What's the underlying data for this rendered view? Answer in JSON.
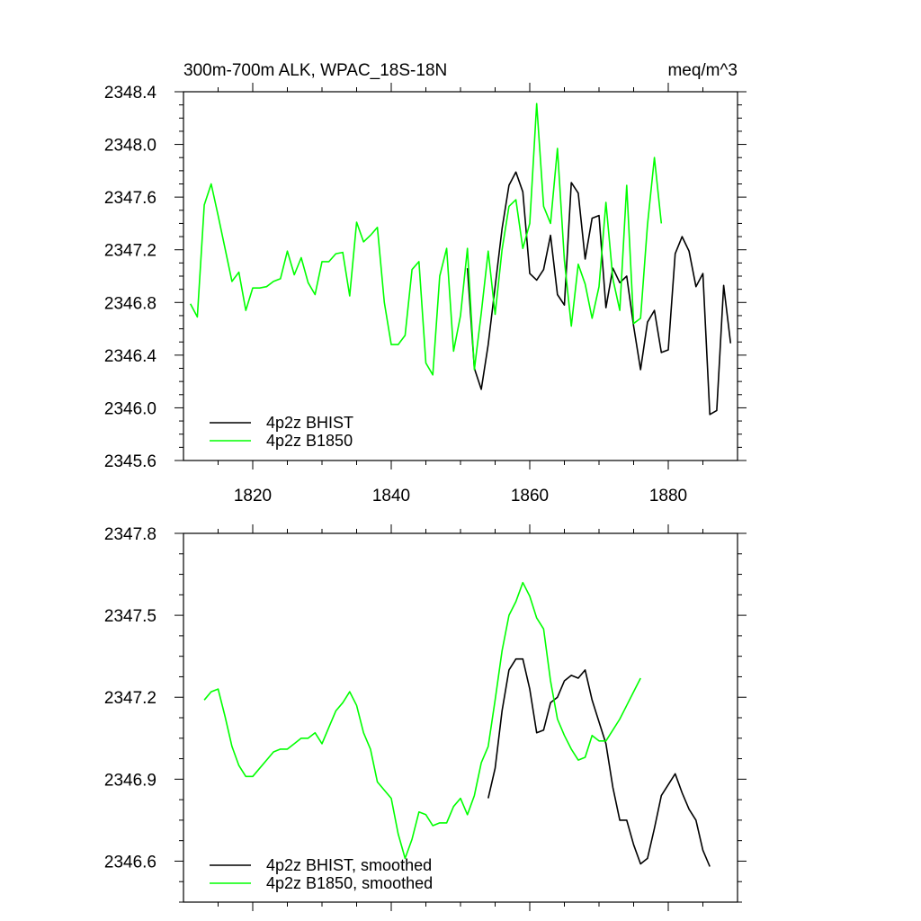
{
  "colors": {
    "bhist": "#000000",
    "b1850": "#00ff00",
    "axes": "#000000",
    "background": "#ffffff"
  },
  "chart_data": [
    {
      "type": "line",
      "title": "300m-700m ALK, WPAC_18S-18N",
      "units": "meq/m^3",
      "xlim": [
        1810,
        1890
      ],
      "ylim": [
        2345.6,
        2348.4
      ],
      "xticks": [
        1820,
        1840,
        1860,
        1880
      ],
      "xtick_labels": [
        "1820",
        "1840",
        "1860",
        "1880"
      ],
      "yticks": [
        2345.6,
        2346.0,
        2346.4,
        2346.8,
        2347.2,
        2347.6,
        2348.0,
        2348.4
      ],
      "ytick_labels": [
        "2345.6",
        "2346.0",
        "2346.4",
        "2346.8",
        "2347.2",
        "2347.6",
        "2348.0",
        "2348.4"
      ],
      "legend_position": "bottom-left",
      "series": [
        {
          "name": "4p2z BHIST",
          "color": "#000000",
          "x": [
            1851,
            1852,
            1853,
            1854,
            1855,
            1856,
            1857,
            1858,
            1859,
            1860,
            1861,
            1862,
            1863,
            1864,
            1865,
            1866,
            1867,
            1868,
            1869,
            1870,
            1871,
            1872,
            1873,
            1874,
            1875,
            1876,
            1877,
            1878,
            1879,
            1880,
            1881,
            1882,
            1883,
            1884,
            1885,
            1886,
            1887,
            1888,
            1889
          ],
          "y": [
            2347.06,
            2346.3,
            2346.14,
            2346.48,
            2346.92,
            2347.36,
            2347.69,
            2347.79,
            2347.64,
            2347.02,
            2346.97,
            2347.05,
            2347.31,
            2346.86,
            2346.78,
            2347.71,
            2347.63,
            2347.13,
            2347.44,
            2347.46,
            2346.76,
            2347.06,
            2346.95,
            2347.0,
            2346.62,
            2346.29,
            2346.65,
            2346.74,
            2346.42,
            2346.44,
            2347.17,
            2347.3,
            2347.19,
            2346.92,
            2347.02,
            2345.95,
            2345.98,
            2346.93,
            2346.49
          ]
        },
        {
          "name": "4p2z B1850",
          "color": "#00ff00",
          "x": [
            1811,
            1812,
            1813,
            1814,
            1815,
            1816,
            1817,
            1818,
            1819,
            1820,
            1821,
            1822,
            1823,
            1824,
            1825,
            1826,
            1827,
            1828,
            1829,
            1830,
            1831,
            1832,
            1833,
            1834,
            1835,
            1836,
            1837,
            1838,
            1839,
            1840,
            1841,
            1842,
            1843,
            1844,
            1845,
            1846,
            1847,
            1848,
            1849,
            1850,
            1851,
            1852,
            1853,
            1854,
            1855,
            1856,
            1857,
            1858,
            1859,
            1860,
            1861,
            1862,
            1863,
            1864,
            1865,
            1866,
            1867,
            1868,
            1869,
            1870,
            1871,
            1872,
            1873,
            1874,
            1875,
            1876,
            1877,
            1878,
            1879
          ],
          "y": [
            2346.79,
            2346.69,
            2347.54,
            2347.7,
            2347.46,
            2347.21,
            2346.96,
            2347.03,
            2346.74,
            2346.91,
            2346.91,
            2346.92,
            2346.96,
            2346.98,
            2347.19,
            2347.01,
            2347.14,
            2346.95,
            2346.86,
            2347.11,
            2347.11,
            2347.17,
            2347.18,
            2346.85,
            2347.41,
            2347.26,
            2347.31,
            2347.37,
            2346.8,
            2346.48,
            2346.48,
            2346.55,
            2347.05,
            2347.11,
            2346.34,
            2346.25,
            2347.0,
            2347.21,
            2346.43,
            2346.7,
            2347.21,
            2346.29,
            2346.72,
            2347.19,
            2346.71,
            2347.2,
            2347.53,
            2347.58,
            2347.21,
            2347.4,
            2348.31,
            2347.53,
            2347.4,
            2347.97,
            2347.12,
            2346.62,
            2347.09,
            2346.94,
            2346.68,
            2346.92,
            2347.56,
            2346.98,
            2346.74,
            2347.69,
            2346.64,
            2346.68,
            2347.39,
            2347.9,
            2347.4
          ]
        }
      ]
    },
    {
      "type": "line",
      "title": "",
      "xlim": [
        1810,
        1890
      ],
      "ylim": [
        2346.45,
        2347.8
      ],
      "xticks": [
        1820,
        1840,
        1860,
        1880
      ],
      "yticks": [
        2346.6,
        2346.9,
        2347.2,
        2347.5,
        2347.8
      ],
      "ytick_labels": [
        "2346.6",
        "2346.9",
        "2347.2",
        "2347.5",
        "2347.8"
      ],
      "legend_position": "bottom-left",
      "series": [
        {
          "name": "4p2z BHIST, smoothed",
          "color": "#000000",
          "x": [
            1854,
            1855,
            1856,
            1857,
            1858,
            1859,
            1860,
            1861,
            1862,
            1863,
            1864,
            1865,
            1866,
            1867,
            1868,
            1869,
            1870,
            1871,
            1872,
            1873,
            1874,
            1875,
            1876,
            1877,
            1878,
            1879,
            1880,
            1881,
            1882,
            1883,
            1884,
            1885,
            1886
          ],
          "y": [
            2346.83,
            2346.94,
            2347.15,
            2347.3,
            2347.34,
            2347.34,
            2347.23,
            2347.07,
            2347.08,
            2347.18,
            2347.2,
            2347.26,
            2347.28,
            2347.27,
            2347.3,
            2347.19,
            2347.11,
            2347.03,
            2346.87,
            2346.75,
            2346.75,
            2346.66,
            2346.59,
            2346.61,
            2346.72,
            2346.84,
            2346.88,
            2346.92,
            2346.85,
            2346.79,
            2346.75,
            2346.64,
            2346.58
          ]
        },
        {
          "name": "4p2z B1850, smoothed",
          "color": "#00ff00",
          "x": [
            1813,
            1814,
            1815,
            1816,
            1817,
            1818,
            1819,
            1820,
            1821,
            1822,
            1823,
            1824,
            1825,
            1826,
            1827,
            1828,
            1829,
            1830,
            1831,
            1832,
            1833,
            1834,
            1835,
            1836,
            1837,
            1838,
            1839,
            1840,
            1841,
            1842,
            1843,
            1844,
            1845,
            1846,
            1847,
            1848,
            1849,
            1850,
            1851,
            1852,
            1853,
            1854,
            1855,
            1856,
            1857,
            1858,
            1859,
            1860,
            1861,
            1862,
            1863,
            1864,
            1865,
            1866,
            1867,
            1868,
            1869,
            1870,
            1871,
            1872,
            1873,
            1874,
            1875,
            1876
          ],
          "y": [
            2347.19,
            2347.22,
            2347.23,
            2347.13,
            2347.02,
            2346.95,
            2346.91,
            2346.91,
            2346.94,
            2346.97,
            2347.0,
            2347.01,
            2347.01,
            2347.03,
            2347.05,
            2347.05,
            2347.07,
            2347.03,
            2347.09,
            2347.15,
            2347.18,
            2347.22,
            2347.17,
            2347.07,
            2347.01,
            2346.89,
            2346.86,
            2346.83,
            2346.7,
            2346.61,
            2346.68,
            2346.78,
            2346.77,
            2346.73,
            2346.74,
            2346.74,
            2346.8,
            2346.83,
            2346.77,
            2346.84,
            2346.96,
            2347.02,
            2347.19,
            2347.37,
            2347.5,
            2347.55,
            2347.62,
            2347.57,
            2347.49,
            2347.45,
            2347.26,
            2347.12,
            2347.06,
            2347.01,
            2346.97,
            2346.98,
            2347.06,
            2347.04,
            2347.04,
            2347.08,
            2347.12,
            2347.17,
            2347.22,
            2347.27
          ]
        }
      ]
    }
  ]
}
